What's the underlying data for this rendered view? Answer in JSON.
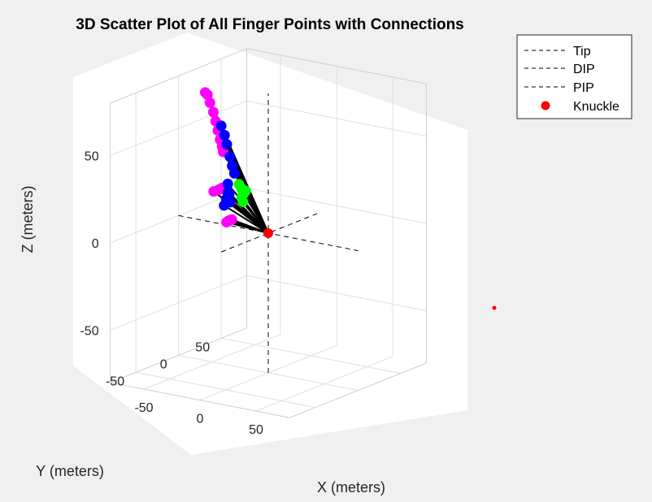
{
  "chart_data": {
    "type": "scatter",
    "title": "3D Scatter Plot of All Finger Points with Connections",
    "xlabel": "X (meters)",
    "ylabel": "Y (meters)",
    "zlabel": "Z (meters)",
    "x_ticks": [
      "-50",
      "0",
      "50"
    ],
    "y_ticks": [
      "50",
      "0",
      "-50"
    ],
    "z_ticks": [
      "50",
      "0",
      "-50"
    ],
    "grid": true,
    "legend_position": "top-right",
    "legend": [
      {
        "name": "Tip",
        "style": "dashed-line",
        "color": "#000000"
      },
      {
        "name": "DIP",
        "style": "dashed-line",
        "color": "#000000"
      },
      {
        "name": "PIP",
        "style": "dashed-line",
        "color": "#000000"
      },
      {
        "name": "Knuckle",
        "style": "marker",
        "color": "#ff0000"
      }
    ],
    "series": [
      {
        "group": "tip",
        "color": "#ff00ff",
        "points": [
          [
            -60,
            5,
            72
          ],
          [
            -58,
            5,
            71
          ],
          [
            -55,
            4,
            67
          ],
          [
            -52,
            4,
            62
          ],
          [
            -50,
            4,
            57
          ],
          [
            -48,
            4,
            52
          ],
          [
            -46,
            4,
            47
          ],
          [
            -45,
            5,
            43
          ],
          [
            -44,
            5,
            40
          ],
          [
            -30,
            -15,
            25
          ],
          [
            -32,
            -16,
            24
          ],
          [
            -35,
            -18,
            23
          ],
          [
            -55,
            25,
            -5
          ],
          [
            -57,
            26,
            -6
          ],
          [
            -53,
            24,
            -4
          ],
          [
            -50,
            23,
            -3
          ]
        ]
      },
      {
        "group": "dip",
        "color": "#0000ff",
        "points": [
          [
            -45,
            4,
            55
          ],
          [
            -42,
            4,
            50
          ],
          [
            -40,
            4,
            45
          ],
          [
            -38,
            5,
            38
          ],
          [
            -36,
            5,
            33
          ],
          [
            -34,
            5,
            29
          ],
          [
            -30,
            -8,
            26
          ],
          [
            -28,
            -10,
            22
          ],
          [
            -26,
            -12,
            18
          ],
          [
            -45,
            10,
            12
          ],
          [
            -43,
            12,
            10
          ],
          [
            -47,
            10,
            8
          ],
          [
            -44,
            12,
            14
          ]
        ]
      },
      {
        "group": "pip",
        "color": "#00ff00",
        "points": [
          [
            -20,
            -8,
            27
          ],
          [
            -18,
            -8,
            25
          ],
          [
            -16,
            -8,
            22
          ],
          [
            -15,
            -10,
            18
          ],
          [
            -17,
            -9,
            20
          ],
          [
            -14,
            -8,
            24
          ]
        ]
      },
      {
        "group": "knuckle",
        "color": "#ff0000",
        "points": [
          [
            0,
            0,
            0
          ]
        ]
      }
    ],
    "xlim": [
      -80,
      80
    ],
    "ylim": [
      -80,
      80
    ],
    "zlim": [
      -80,
      80
    ]
  }
}
